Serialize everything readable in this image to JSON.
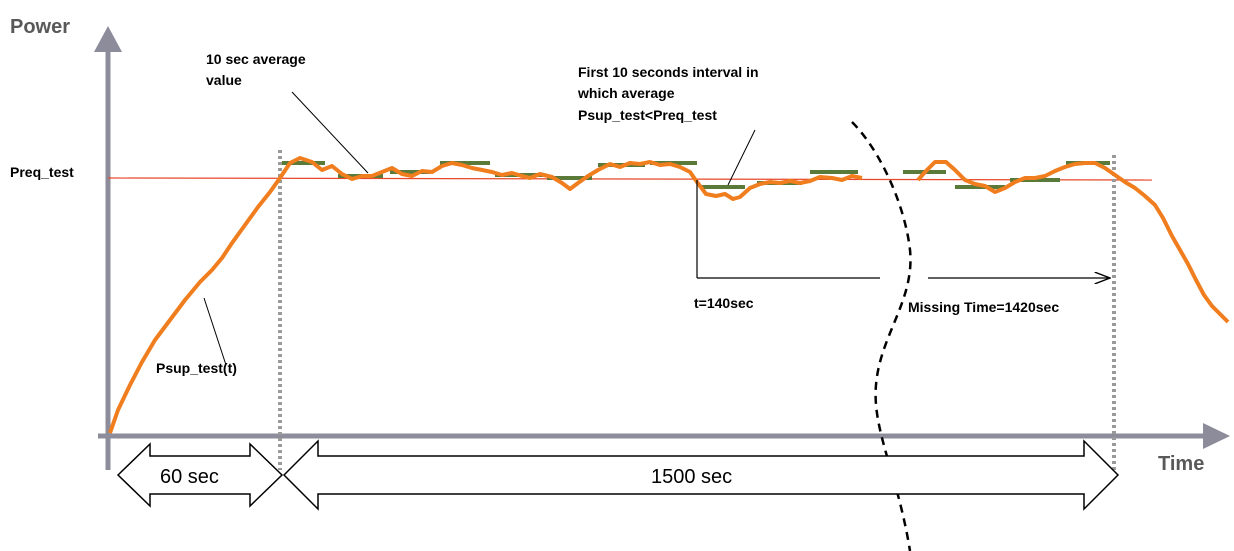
{
  "axes": {
    "y_title": "Power",
    "x_title": "Time"
  },
  "labels": {
    "preq": "Preq_test",
    "avg_line1": "10 sec average",
    "avg_line2": "value",
    "first_line1": "First 10 seconds interval in",
    "first_line2": "which average",
    "first_line3": "Psup_test<Preq_test",
    "curve": "Psup_test(t)",
    "t140": "t=140sec",
    "missing": "Missing Time=1420sec"
  },
  "spans": {
    "ramp": "60 sec",
    "test": "1500 sec"
  },
  "colors": {
    "curve": "#f07d1e",
    "average": "#5a7a3a",
    "reference": "#e8472a",
    "axis": "#8c8c9a",
    "marker": "#9a9a9a"
  }
}
